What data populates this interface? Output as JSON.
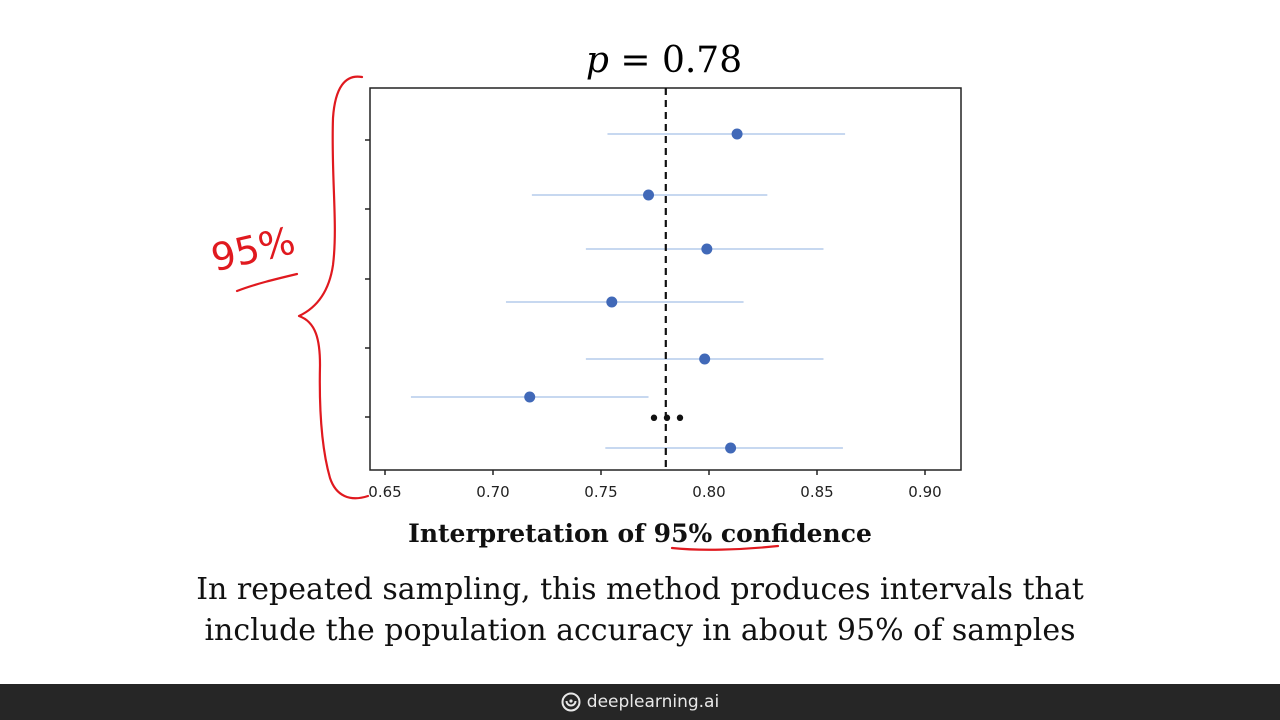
{
  "chart_data": {
    "type": "scatter",
    "title": "p = 0.78",
    "title_var": "p",
    "title_rest": " = 0.78",
    "xlim": [
      0.65,
      0.92
    ],
    "x_ticks": [
      "0.65",
      "0.70",
      "0.75",
      "0.80",
      "0.85",
      "0.90"
    ],
    "reference_line": 0.78,
    "points": [
      {
        "x": 0.813,
        "lo": 0.753,
        "hi": 0.863
      },
      {
        "x": 0.772,
        "lo": 0.718,
        "hi": 0.827
      },
      {
        "x": 0.799,
        "lo": 0.743,
        "hi": 0.853
      },
      {
        "x": 0.755,
        "lo": 0.706,
        "hi": 0.816
      },
      {
        "x": 0.798,
        "lo": 0.743,
        "hi": 0.853
      },
      {
        "x": 0.717,
        "lo": 0.662,
        "hi": 0.772
      },
      {
        "x": 0.81,
        "lo": 0.752,
        "hi": 0.862
      }
    ],
    "ellipsis": "•••",
    "grid": false,
    "annotation": "95%"
  },
  "heading": {
    "prefix": "Interpretation of ",
    "highlight": "95% conf",
    "suffix": "idence"
  },
  "caption": {
    "line1": "In repeated sampling, this method produces intervals that",
    "line2": "include the population accuracy in about 95% of samples"
  },
  "footer": {
    "brand": "deeplearning.ai"
  },
  "colors": {
    "point": "#4169b8",
    "interval": "#8fb0e0",
    "annotation": "#e0191f",
    "footer_bg": "#262626"
  }
}
